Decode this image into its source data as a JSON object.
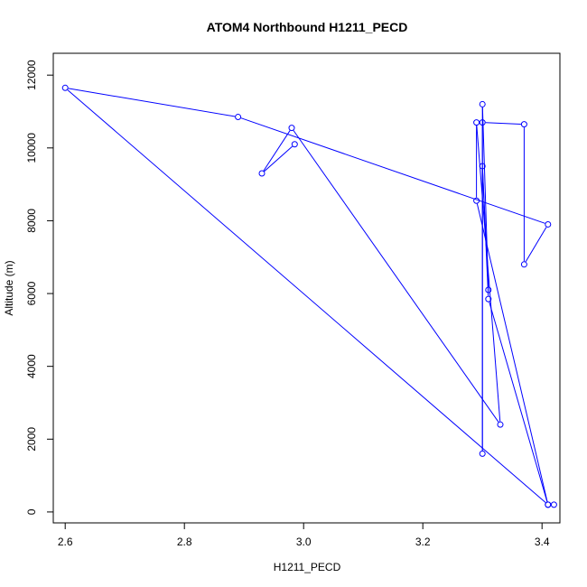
{
  "chart_data": {
    "type": "line",
    "title": "ATOM4 Northbound H1211_PECD",
    "xlabel": "H1211_PECD",
    "ylabel": "Altitude (m)",
    "xlim": [
      2.58,
      3.43
    ],
    "ylim": [
      -300,
      12600
    ],
    "xticks": [
      2.6,
      2.8,
      3.0,
      3.2,
      3.4
    ],
    "xtick_labels": [
      "2.6",
      "2.8",
      "3.0",
      "3.2",
      "3.4"
    ],
    "yticks": [
      0,
      2000,
      4000,
      6000,
      8000,
      10000,
      12000
    ],
    "ytick_labels": [
      "0",
      "2000",
      "4000",
      "6000",
      "8000",
      "10000",
      "12000"
    ],
    "grid": false,
    "series": [
      {
        "color": "#0000ff",
        "marker": "open-circle",
        "points": [
          {
            "x": 3.42,
            "y": 200
          },
          {
            "x": 3.41,
            "y": 200
          },
          {
            "x": 2.6,
            "y": 11650
          },
          {
            "x": 2.89,
            "y": 10850
          },
          {
            "x": 3.41,
            "y": 7900
          },
          {
            "x": 3.37,
            "y": 6800
          },
          {
            "x": 3.37,
            "y": 10650
          },
          {
            "x": 3.3,
            "y": 10700
          },
          {
            "x": 3.3,
            "y": 1600
          },
          {
            "x": 3.3,
            "y": 11200
          },
          {
            "x": 3.31,
            "y": 6100
          },
          {
            "x": 3.3,
            "y": 9500
          },
          {
            "x": 3.31,
            "y": 5850
          },
          {
            "x": 3.41,
            "y": 200
          },
          {
            "x": 3.29,
            "y": 8550
          },
          {
            "x": 3.29,
            "y": 10700
          },
          {
            "x": 3.33,
            "y": 2400
          },
          {
            "x": 2.98,
            "y": 10550
          },
          {
            "x": 2.93,
            "y": 9300
          },
          {
            "x": 2.985,
            "y": 10100
          }
        ]
      }
    ]
  }
}
